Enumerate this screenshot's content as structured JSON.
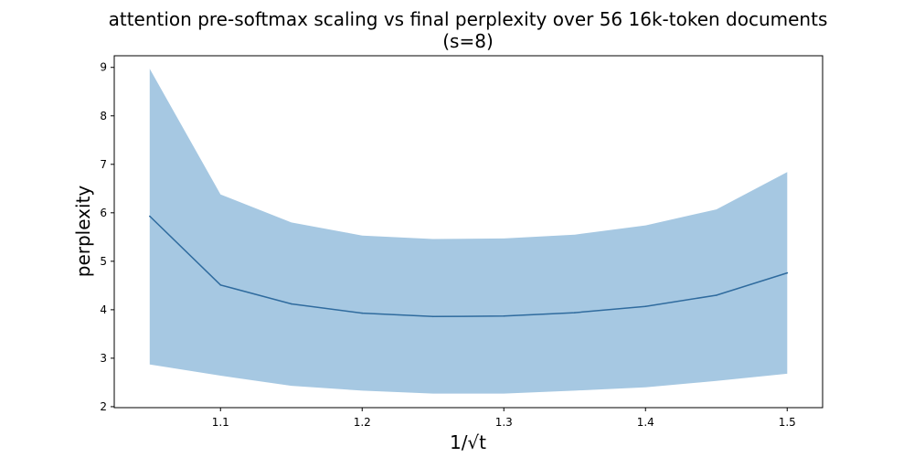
{
  "chart_data": {
    "type": "line",
    "title_line1": "attention pre-softmax scaling vs final perplexity over 56 16k-token documents",
    "title_line2": "(s=8)",
    "xlabel": "1/√t",
    "ylabel": "perplexity",
    "xlim": [
      1.025,
      1.525
    ],
    "ylim": [
      1.98,
      9.24
    ],
    "x_ticks": [
      1.1,
      1.2,
      1.3,
      1.4,
      1.5
    ],
    "x_tick_labels": [
      "1.1",
      "1.2",
      "1.3",
      "1.4",
      "1.5"
    ],
    "y_ticks": [
      2,
      3,
      4,
      5,
      6,
      7,
      8,
      9
    ],
    "y_tick_labels": [
      "2",
      "3",
      "4",
      "5",
      "6",
      "7",
      "8",
      "9"
    ],
    "grid": false,
    "series": [
      {
        "x": [
          1.05,
          1.1,
          1.15,
          1.2,
          1.25,
          1.3,
          1.35,
          1.4,
          1.45,
          1.5
        ],
        "mean": [
          5.93,
          4.51,
          4.12,
          3.93,
          3.86,
          3.87,
          3.94,
          4.07,
          4.3,
          4.76
        ],
        "upper": [
          8.97,
          6.38,
          5.8,
          5.53,
          5.46,
          5.47,
          5.55,
          5.74,
          6.07,
          6.84
        ],
        "lower": [
          2.87,
          2.64,
          2.43,
          2.33,
          2.27,
          2.27,
          2.33,
          2.4,
          2.53,
          2.68
        ],
        "line_color": "#2f6b9e",
        "band_color": "#a6c8e2"
      }
    ]
  }
}
